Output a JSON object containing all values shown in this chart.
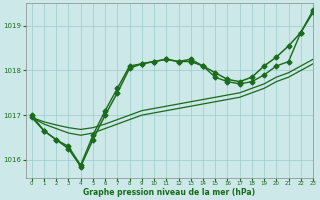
{
  "bg_color": "#cce8e8",
  "grid_color": "#99cccc",
  "line_color": "#1a6b1a",
  "title": "Graphe pression niveau de la mer (hPa)",
  "xlim": [
    -0.5,
    23
  ],
  "ylim": [
    1015.6,
    1019.5
  ],
  "yticks": [
    1016,
    1017,
    1018,
    1019
  ],
  "xticks": [
    0,
    1,
    2,
    3,
    4,
    5,
    6,
    7,
    8,
    9,
    10,
    11,
    12,
    13,
    14,
    15,
    16,
    17,
    18,
    19,
    20,
    21,
    22,
    23
  ],
  "series": [
    {
      "x": [
        0,
        1,
        2,
        3,
        4,
        5,
        6,
        7,
        8,
        9,
        10,
        11,
        12,
        13,
        14,
        15,
        16,
        17,
        18,
        19,
        20,
        21,
        22,
        23
      ],
      "y": [
        1016.95,
        1016.65,
        1016.45,
        1016.25,
        1015.85,
        1016.45,
        1017.0,
        1017.5,
        1018.05,
        1018.15,
        1018.2,
        1018.25,
        1018.2,
        1018.25,
        1018.1,
        1017.95,
        1017.8,
        1017.75,
        1017.85,
        1018.1,
        1018.3,
        1018.55,
        1018.85,
        1019.3
      ],
      "marker": "D",
      "markersize": 2.5,
      "linewidth": 1.1,
      "linestyle": "-"
    },
    {
      "x": [
        0,
        1,
        2,
        3,
        4,
        5,
        6,
        7,
        8,
        9,
        10,
        11,
        12,
        13,
        14,
        15,
        16,
        17,
        18,
        19,
        20,
        21,
        22,
        23
      ],
      "y": [
        1017.0,
        1016.65,
        1016.45,
        1016.3,
        1015.88,
        1016.55,
        1017.1,
        1017.6,
        1018.1,
        1018.15,
        1018.2,
        1018.25,
        1018.2,
        1018.2,
        1018.1,
        1017.85,
        1017.75,
        1017.7,
        1017.75,
        1017.9,
        1018.1,
        1018.2,
        1018.85,
        1019.35
      ],
      "marker": "D",
      "markersize": 2.5,
      "linewidth": 1.0,
      "linestyle": "-"
    },
    {
      "x": [
        0,
        1,
        2,
        3,
        4,
        5,
        6,
        7,
        8,
        9,
        10,
        11,
        12,
        13,
        14,
        15,
        16,
        17,
        18,
        19,
        20,
        21,
        22,
        23
      ],
      "y": [
        1016.95,
        1016.8,
        1016.7,
        1016.6,
        1016.55,
        1016.6,
        1016.7,
        1016.8,
        1016.9,
        1017.0,
        1017.05,
        1017.1,
        1017.15,
        1017.2,
        1017.25,
        1017.3,
        1017.35,
        1017.4,
        1017.5,
        1017.6,
        1017.75,
        1017.85,
        1018.0,
        1018.15
      ],
      "marker": null,
      "markersize": 0,
      "linewidth": 0.9,
      "linestyle": "-"
    },
    {
      "x": [
        0,
        1,
        2,
        3,
        4,
        5,
        6,
        7,
        8,
        9,
        10,
        11,
        12,
        13,
        14,
        15,
        16,
        17,
        18,
        19,
        20,
        21,
        22,
        23
      ],
      "y": [
        1016.95,
        1016.85,
        1016.78,
        1016.72,
        1016.68,
        1016.72,
        1016.8,
        1016.9,
        1017.0,
        1017.1,
        1017.15,
        1017.2,
        1017.25,
        1017.3,
        1017.35,
        1017.4,
        1017.45,
        1017.5,
        1017.6,
        1017.7,
        1017.85,
        1017.95,
        1018.1,
        1018.25
      ],
      "marker": null,
      "markersize": 0,
      "linewidth": 0.9,
      "linestyle": "-"
    }
  ],
  "figwidth": 3.2,
  "figheight": 2.0,
  "dpi": 100
}
